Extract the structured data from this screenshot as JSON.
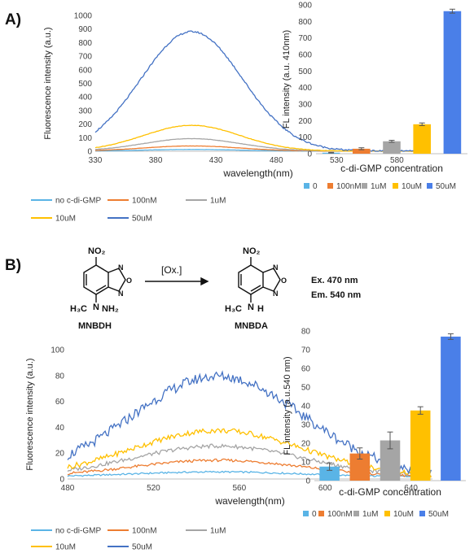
{
  "panel_labels": [
    "A)",
    "B)"
  ],
  "colors": {
    "s0": "#5ab4e6",
    "s1": "#ed7d31",
    "s2": "#a5a5a5",
    "s3": "#ffc000",
    "s4": "#4472c4",
    "bar0": "#5ab4e6",
    "bar1": "#ed7d31",
    "bar2": "#a5a5a5",
    "bar3": "#ffc000",
    "bar4": "#4a7fe8",
    "axis": "#bfbfbf",
    "text": "#404040"
  },
  "scheme": {
    "reactant_name": "MNBDH",
    "product_name": "MNBDA",
    "arrow_label": "[Ox.]",
    "nitro_label": "NO₂",
    "ring_o": "O",
    "ring_n_top": "N",
    "ring_n_bottom": "N",
    "reactant_amine_left": "H₃C",
    "reactant_amine_n": "N",
    "reactant_amine_right": "NH₂",
    "product_amine_left": "H₃C",
    "product_amine_n": "N",
    "product_amine_h": "H",
    "excitation": "Ex.  470 nm",
    "emission": "Em. 540 nm"
  },
  "chart_data": [
    {
      "id": "A_spectrum",
      "type": "line",
      "xlabel": "wavelength(nm)",
      "ylabel": "Fluorescence intensity (a.u.)",
      "xlim": [
        330,
        600
      ],
      "ylim": [
        0,
        1000
      ],
      "xticks": [
        330,
        380,
        430,
        480,
        530,
        580
      ],
      "yticks": [
        0,
        100,
        200,
        300,
        400,
        500,
        600,
        700,
        800,
        900,
        1000
      ],
      "grid": false,
      "legend_position": "bottom",
      "peak_x": 410,
      "series": [
        {
          "name": "no c-di-GMP",
          "peak": 12,
          "width": 40
        },
        {
          "name": "100nM",
          "peak": 38,
          "width": 40
        },
        {
          "name": "1uM",
          "peak": 92,
          "width": 40
        },
        {
          "name": "10uM",
          "peak": 190,
          "width": 40
        },
        {
          "name": "50uM",
          "peak": 880,
          "width": 42
        }
      ]
    },
    {
      "id": "A_bar",
      "type": "bar",
      "xlabel": "c-di-GMP concentration",
      "ylabel": "FL intensity (a.u. 410nm)",
      "ylim": [
        0,
        900
      ],
      "yticks": [
        0,
        100,
        200,
        300,
        400,
        500,
        600,
        700,
        800,
        900
      ],
      "grid": false,
      "legend_position": "bottom",
      "categories": [
        "0",
        "100nM",
        "1uM",
        "10uM",
        "50uM"
      ],
      "values": [
        6,
        30,
        75,
        178,
        862
      ],
      "errors": [
        2,
        6,
        6,
        8,
        12
      ]
    },
    {
      "id": "B_spectrum",
      "type": "line",
      "xlabel": "wavelength(nm)",
      "ylabel": "Fluorescence intensity (a.u.)",
      "xlim": [
        480,
        650
      ],
      "ylim": [
        0,
        100
      ],
      "xticks": [
        480,
        520,
        560,
        600,
        640
      ],
      "yticks": [
        0,
        20,
        40,
        60,
        80,
        100
      ],
      "grid": false,
      "legend_position": "bottom",
      "peak_x": 550,
      "series": [
        {
          "name": "no c-di-GMP",
          "peak": 4,
          "width": 40
        },
        {
          "name": "100nM",
          "peak": 13,
          "width": 40
        },
        {
          "name": "1uM",
          "peak": 24,
          "width": 40
        },
        {
          "name": "10uM",
          "peak": 36,
          "width": 40
        },
        {
          "name": "50uM",
          "peak": 78,
          "width": 40
        }
      ]
    },
    {
      "id": "B_bar",
      "type": "bar",
      "xlabel": "c-di-GMP concentration",
      "ylabel": "FL intensity (a.u.540 nm)",
      "ylim": [
        0,
        80
      ],
      "yticks": [
        0,
        10,
        20,
        30,
        40,
        50,
        60,
        70,
        80
      ],
      "grid": false,
      "legend_position": "bottom",
      "categories": [
        "0",
        "100nM",
        "1uM",
        "10uM",
        "50uM"
      ],
      "values": [
        7.5,
        14.5,
        21.5,
        37.5,
        77
      ],
      "errors": [
        2,
        3,
        4.5,
        2,
        1.5
      ]
    }
  ]
}
